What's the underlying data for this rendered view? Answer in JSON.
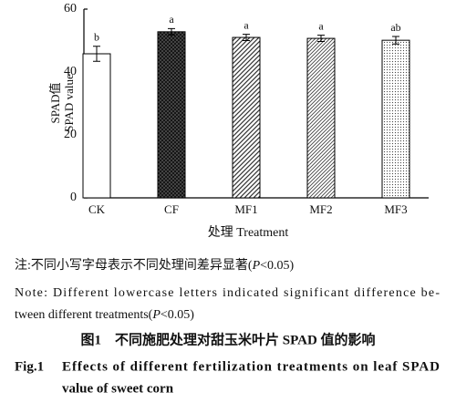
{
  "chart_data": {
    "type": "bar",
    "categories": [
      "CK",
      "CF",
      "MF1",
      "MF2",
      "MF3"
    ],
    "values": [
      45.8,
      52.8,
      51.0,
      50.7,
      50.1
    ],
    "errors": [
      2.4,
      1.0,
      1.0,
      1.0,
      1.2
    ],
    "letters": [
      "b",
      "a",
      "a",
      "a",
      "ab"
    ],
    "ylabel": [
      "SPAD值",
      "SPAD value"
    ],
    "xlabel": "处理 Treatment",
    "ylim": [
      0,
      60
    ],
    "yticks": [
      0,
      20,
      40,
      60
    ]
  },
  "caption": {
    "note_cn": [
      "注:不同小写字母表示不同处理间差异显著(",
      "P",
      "<0.05)"
    ],
    "note_en": [
      "Note: Different lowercase letters indicated significant difference be-",
      "tween different treatments(",
      "P",
      "<0.05)"
    ],
    "title_cn": "图1　不同施肥处理对甜玉米叶片 SPAD 值的影响",
    "title_en": [
      "Fig.1",
      "Effects of different fertilization treatments on leaf SPAD",
      "value of sweet corn"
    ]
  }
}
